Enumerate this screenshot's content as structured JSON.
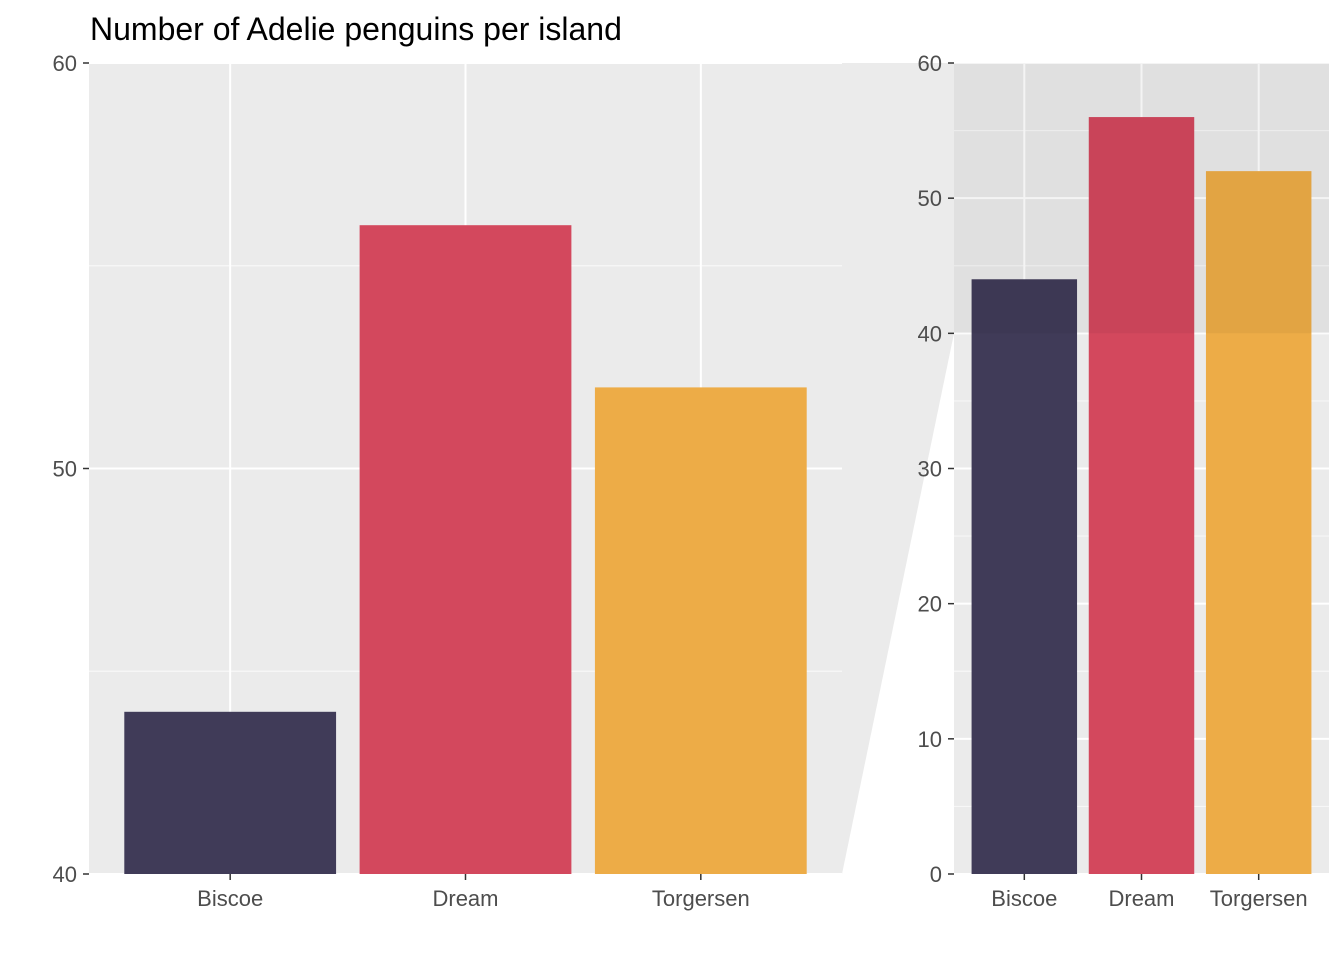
{
  "chart_data": {
    "type": "bar",
    "title": "Number of Adelie penguins per island",
    "categories": [
      "Biscoe",
      "Dream",
      "Torgersen"
    ],
    "values": [
      44,
      56,
      52
    ],
    "colors": [
      "#403b58",
      "#d3485d",
      "#edac47"
    ],
    "panels": [
      {
        "name": "zoomed",
        "ylim": [
          40,
          60
        ],
        "yticks": [
          "40",
          "50",
          "60"
        ],
        "grid": true
      },
      {
        "name": "full",
        "ylim": [
          0,
          60
        ],
        "yticks": [
          "0",
          "10",
          "20",
          "30",
          "40",
          "50",
          "60"
        ],
        "grid": true
      }
    ],
    "xlabel": "",
    "ylabel": ""
  }
}
